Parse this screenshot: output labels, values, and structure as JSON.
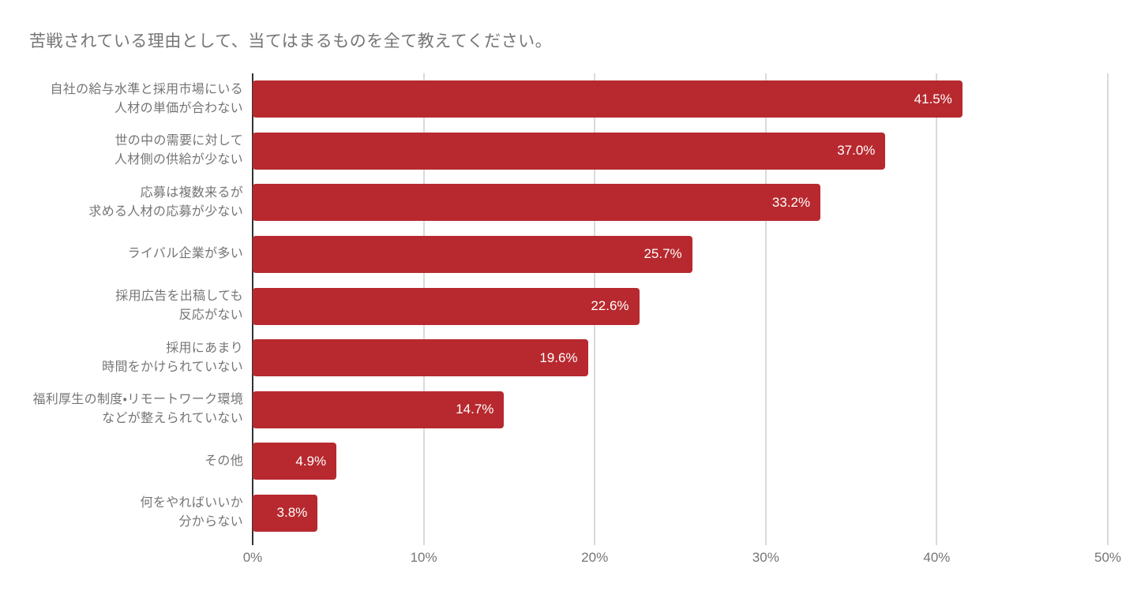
{
  "chart_data": {
    "type": "bar",
    "orientation": "horizontal",
    "title": "苦戦されている理由として、当てはまるものを全て教えてください。",
    "bars": [
      {
        "label_lines": [
          "自社の給与水準と採用市場にいる",
          "人材の単価が合わない"
        ],
        "value": 41.5,
        "value_label": "41.5%"
      },
      {
        "label_lines": [
          "世の中の需要に対して",
          "人材側の供給が少ない"
        ],
        "value": 37.0,
        "value_label": "37.0%"
      },
      {
        "label_lines": [
          "応募は複数来るが",
          "求める人材の応募が少ない"
        ],
        "value": 33.2,
        "value_label": "33.2%"
      },
      {
        "label_lines": [
          "ライバル企業が多い"
        ],
        "value": 25.7,
        "value_label": "25.7%"
      },
      {
        "label_lines": [
          "採用広告を出稿しても",
          "反応がない"
        ],
        "value": 22.6,
        "value_label": "22.6%"
      },
      {
        "label_lines": [
          "採用にあまり",
          "時間をかけられていない"
        ],
        "value": 19.6,
        "value_label": "19.6%"
      },
      {
        "label_lines": [
          "福利厚生の制度・リモートワーク環境",
          "などが整えられていない"
        ],
        "value": 14.7,
        "value_label": "14.7%"
      },
      {
        "label_lines": [
          "その他"
        ],
        "value": 4.9,
        "value_label": "4.9%"
      },
      {
        "label_lines": [
          "何をやればいいか",
          "分からない"
        ],
        "value": 3.8,
        "value_label": "3.8%"
      }
    ],
    "x_axis": {
      "min": 0,
      "max": 50,
      "tick_step": 10,
      "ticks": [
        "0%",
        "10%",
        "20%",
        "30%",
        "40%",
        "50%"
      ]
    },
    "legend": null,
    "grid": true,
    "colors": {
      "bar": "#B7292E",
      "value_text": "#FFFFFF",
      "title_text": "#757575",
      "category_text": "#757575",
      "tick_text": "#757575",
      "gridline": "#DADADA",
      "axis_line": "#333333",
      "background": "#FFFFFF"
    }
  }
}
